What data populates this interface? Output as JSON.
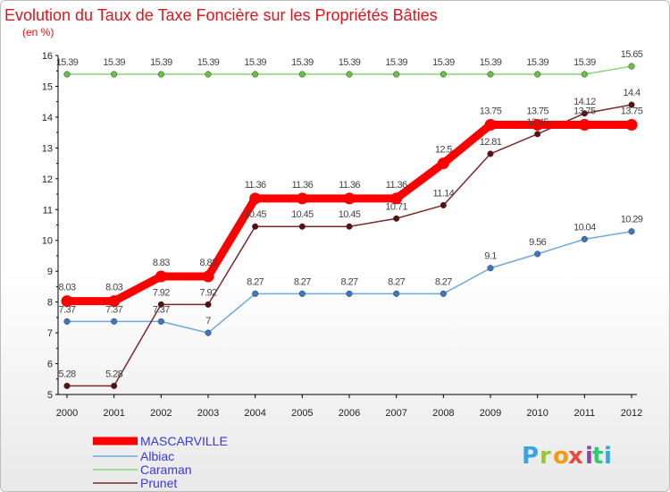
{
  "chart_data": {
    "type": "line",
    "title": "Evolution du Taux de Taxe Foncière sur les Propriétés Bâties",
    "subtitle": "(en %)",
    "xlabel": "",
    "ylabel": "",
    "x": [
      "2000",
      "2001",
      "2002",
      "2003",
      "2004",
      "2005",
      "2006",
      "2007",
      "2008",
      "2009",
      "2010",
      "2011",
      "2012"
    ],
    "ylim": [
      5,
      16
    ],
    "yticks": [
      "5",
      "6",
      "7",
      "8",
      "9",
      "10",
      "11",
      "12",
      "13",
      "14",
      "15",
      "16"
    ],
    "grid": false,
    "legend_position": "bottom-left",
    "series": [
      {
        "name": "MASCARVILLE",
        "color": "#ff0000",
        "marker": "#ff0000",
        "values": [
          8.03,
          8.03,
          8.83,
          8.83,
          11.36,
          11.36,
          11.36,
          11.36,
          12.5,
          13.75,
          13.75,
          13.75,
          13.75
        ],
        "labels": [
          "8.03",
          "8.03",
          "8.83",
          "8.83",
          "11.36",
          "11.36",
          "11.36",
          "11.36",
          "12.5",
          "13.75",
          "13.75",
          "13.75",
          "13.75"
        ]
      },
      {
        "name": "Albiac",
        "color": "#6ea8dc",
        "marker": "#3b78c2",
        "values": [
          7.37,
          7.37,
          7.37,
          7,
          8.27,
          8.27,
          8.27,
          8.27,
          8.27,
          9.1,
          9.56,
          10.04,
          10.29
        ],
        "labels": [
          "7.37",
          "7.37",
          "7.37",
          "7",
          "8.27",
          "8.27",
          "8.27",
          "8.27",
          "8.27",
          "9.1",
          "9.56",
          "10.04",
          "10.29"
        ]
      },
      {
        "name": "Caraman",
        "color": "#88d66f",
        "marker": "#66c244",
        "values": [
          15.39,
          15.39,
          15.39,
          15.39,
          15.39,
          15.39,
          15.39,
          15.39,
          15.39,
          15.39,
          15.39,
          15.39,
          15.65
        ],
        "labels": [
          "15.39",
          "15.39",
          "15.39",
          "15.39",
          "15.39",
          "15.39",
          "15.39",
          "15.39",
          "15.39",
          "15.39",
          "15.39",
          "15.39",
          "15.65"
        ]
      },
      {
        "name": "Prunet",
        "color": "#7a2a2a",
        "marker": "#5a1010",
        "values": [
          5.28,
          5.28,
          7.92,
          7.92,
          10.45,
          10.45,
          10.45,
          10.71,
          11.14,
          12.81,
          13.45,
          14.12,
          14.4
        ],
        "labels": [
          "5.28",
          "5.28",
          "7.92",
          "7.92",
          "10.45",
          "10.45",
          "10.45",
          "10.71",
          "11.14",
          "12.81",
          "13.45",
          "14.12",
          "14.4"
        ]
      }
    ]
  },
  "logo": {
    "letters": [
      "P",
      "r",
      "o",
      "x",
      "i",
      "t",
      "i"
    ],
    "colors": [
      "#3aa3e0",
      "#9bc53d",
      "#f39c12",
      "#e74c3c",
      "#8e44ad",
      "#2ecc71",
      "#3aa3e0"
    ]
  }
}
